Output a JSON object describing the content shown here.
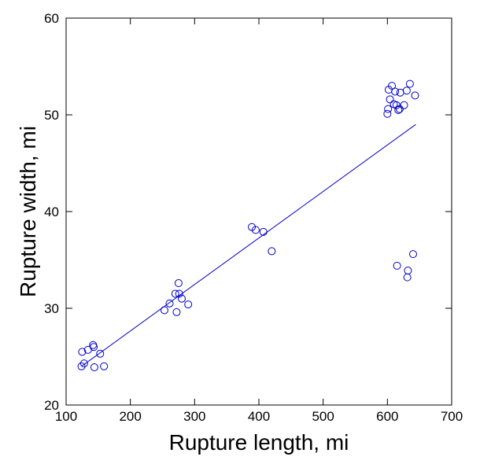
{
  "chart_data": {
    "type": "scatter",
    "title": "",
    "xlabel": "Rupture length, mi",
    "ylabel": "Rupture width, mi",
    "xlim": [
      100,
      700
    ],
    "ylim": [
      20,
      60
    ],
    "xticks": [
      100,
      200,
      300,
      400,
      500,
      600,
      700
    ],
    "yticks": [
      20,
      30,
      40,
      50,
      60
    ],
    "grid": false,
    "marker_color": "#0000cc",
    "line_color": "#0000cc",
    "series": [
      {
        "values": [
          [
            125,
            25.5
          ],
          [
            128,
            24.3
          ],
          [
            134,
            25.7
          ],
          [
            142,
            26.2
          ],
          [
            143,
            26.0
          ],
          [
            124,
            24.0
          ],
          [
            144,
            23.9
          ],
          [
            153,
            25.3
          ],
          [
            159,
            24.0
          ],
          [
            253,
            29.8
          ],
          [
            261,
            30.5
          ],
          [
            270,
            31.5
          ],
          [
            272,
            29.6
          ],
          [
            275,
            32.6
          ],
          [
            276,
            31.5
          ],
          [
            280,
            31.0
          ],
          [
            290,
            30.4
          ],
          [
            389,
            38.4
          ],
          [
            395,
            38.1
          ],
          [
            407,
            37.9
          ],
          [
            420,
            35.9
          ],
          [
            600,
            50.1
          ],
          [
            601,
            50.6
          ],
          [
            602,
            52.6
          ],
          [
            604,
            51.6
          ],
          [
            607,
            53.0
          ],
          [
            610,
            51.1
          ],
          [
            612,
            52.4
          ],
          [
            614,
            51.0
          ],
          [
            617,
            50.5
          ],
          [
            619,
            50.6
          ],
          [
            620,
            52.3
          ],
          [
            626,
            51.0
          ],
          [
            630,
            52.5
          ],
          [
            635,
            53.2
          ],
          [
            643,
            52.0
          ],
          [
            615,
            34.4
          ],
          [
            631,
            33.2
          ],
          [
            632,
            33.9
          ],
          [
            640,
            35.6
          ]
        ]
      }
    ],
    "trendline": [
      [
        124,
        24.0
      ],
      [
        644,
        49.0
      ]
    ]
  }
}
